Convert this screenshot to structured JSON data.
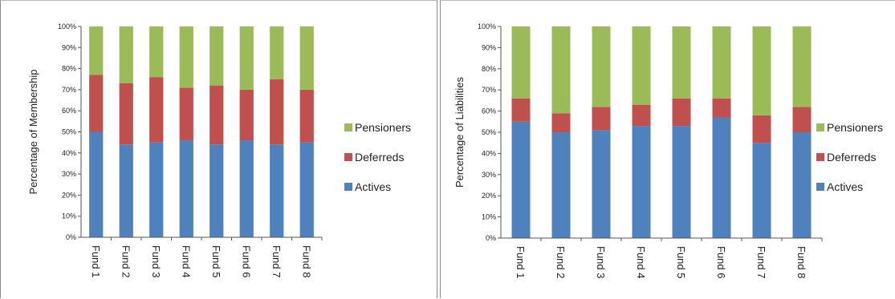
{
  "colors": {
    "Actives": "#4f81bd",
    "Deferreds": "#c0504d",
    "Pensioners": "#9bbb59"
  },
  "chart_data": [
    {
      "type": "bar",
      "stacked": true,
      "ylabel": "Percentage of Membership",
      "xlabel": "",
      "ylim": [
        0,
        100
      ],
      "yticks": [
        "0%",
        "10%",
        "20%",
        "30%",
        "40%",
        "50%",
        "60%",
        "70%",
        "80%",
        "90%",
        "100%"
      ],
      "categories": [
        "Fund 1",
        "Fund 2",
        "Fund 3",
        "Fund 4",
        "Fund 5",
        "Fund 6",
        "Fund 7",
        "Fund 8"
      ],
      "series": [
        {
          "name": "Actives",
          "values": [
            50,
            44,
            45,
            46,
            44,
            46,
            44,
            45
          ]
        },
        {
          "name": "Deferreds",
          "values": [
            27,
            29,
            31,
            25,
            28,
            24,
            31,
            25
          ]
        },
        {
          "name": "Pensioners",
          "values": [
            23,
            27,
            24,
            29,
            28,
            30,
            25,
            30
          ]
        }
      ],
      "legend": "right",
      "grid": false
    },
    {
      "type": "bar",
      "stacked": true,
      "ylabel": "Percentage of Liabilities",
      "xlabel": "",
      "ylim": [
        0,
        100
      ],
      "yticks": [
        "0%",
        "10%",
        "20%",
        "30%",
        "40%",
        "50%",
        "60%",
        "70%",
        "80%",
        "90%",
        "100%"
      ],
      "categories": [
        "Fund 1",
        "Fund 2",
        "Fund 3",
        "Fund 4",
        "Fund 5",
        "Fund 6",
        "Fund 7",
        "Fund 8"
      ],
      "series": [
        {
          "name": "Actives",
          "values": [
            55,
            50,
            51,
            53,
            53,
            57,
            45,
            50
          ]
        },
        {
          "name": "Deferreds",
          "values": [
            11,
            9,
            11,
            10,
            13,
            9,
            13,
            12
          ]
        },
        {
          "name": "Pensioners",
          "values": [
            34,
            41,
            38,
            37,
            34,
            34,
            42,
            38
          ]
        }
      ],
      "legend": "right",
      "grid": false
    }
  ]
}
